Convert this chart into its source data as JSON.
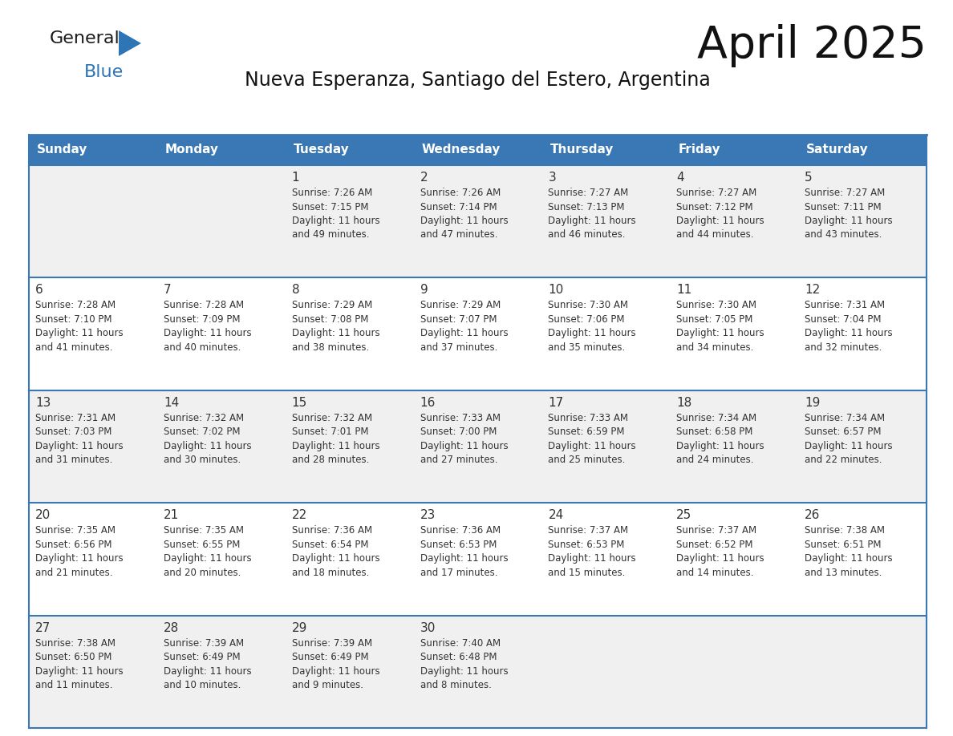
{
  "title": "April 2025",
  "subtitle": "Nueva Esperanza, Santiago del Estero, Argentina",
  "header_bg": "#3a78b5",
  "header_text": "#ffffff",
  "cell_bg_odd": "#f0f0f0",
  "cell_bg_even": "#ffffff",
  "border_color": "#3a78b5",
  "text_color": "#333333",
  "day_num_color": "#333333",
  "logo_black": "#1a1a1a",
  "logo_blue": "#2e75b6",
  "logo_tri": "#2e75b6",
  "day_headers": [
    "Sunday",
    "Monday",
    "Tuesday",
    "Wednesday",
    "Thursday",
    "Friday",
    "Saturday"
  ],
  "weeks": [
    [
      {
        "day": "",
        "text": ""
      },
      {
        "day": "",
        "text": ""
      },
      {
        "day": "1",
        "text": "Sunrise: 7:26 AM\nSunset: 7:15 PM\nDaylight: 11 hours\nand 49 minutes."
      },
      {
        "day": "2",
        "text": "Sunrise: 7:26 AM\nSunset: 7:14 PM\nDaylight: 11 hours\nand 47 minutes."
      },
      {
        "day": "3",
        "text": "Sunrise: 7:27 AM\nSunset: 7:13 PM\nDaylight: 11 hours\nand 46 minutes."
      },
      {
        "day": "4",
        "text": "Sunrise: 7:27 AM\nSunset: 7:12 PM\nDaylight: 11 hours\nand 44 minutes."
      },
      {
        "day": "5",
        "text": "Sunrise: 7:27 AM\nSunset: 7:11 PM\nDaylight: 11 hours\nand 43 minutes."
      }
    ],
    [
      {
        "day": "6",
        "text": "Sunrise: 7:28 AM\nSunset: 7:10 PM\nDaylight: 11 hours\nand 41 minutes."
      },
      {
        "day": "7",
        "text": "Sunrise: 7:28 AM\nSunset: 7:09 PM\nDaylight: 11 hours\nand 40 minutes."
      },
      {
        "day": "8",
        "text": "Sunrise: 7:29 AM\nSunset: 7:08 PM\nDaylight: 11 hours\nand 38 minutes."
      },
      {
        "day": "9",
        "text": "Sunrise: 7:29 AM\nSunset: 7:07 PM\nDaylight: 11 hours\nand 37 minutes."
      },
      {
        "day": "10",
        "text": "Sunrise: 7:30 AM\nSunset: 7:06 PM\nDaylight: 11 hours\nand 35 minutes."
      },
      {
        "day": "11",
        "text": "Sunrise: 7:30 AM\nSunset: 7:05 PM\nDaylight: 11 hours\nand 34 minutes."
      },
      {
        "day": "12",
        "text": "Sunrise: 7:31 AM\nSunset: 7:04 PM\nDaylight: 11 hours\nand 32 minutes."
      }
    ],
    [
      {
        "day": "13",
        "text": "Sunrise: 7:31 AM\nSunset: 7:03 PM\nDaylight: 11 hours\nand 31 minutes."
      },
      {
        "day": "14",
        "text": "Sunrise: 7:32 AM\nSunset: 7:02 PM\nDaylight: 11 hours\nand 30 minutes."
      },
      {
        "day": "15",
        "text": "Sunrise: 7:32 AM\nSunset: 7:01 PM\nDaylight: 11 hours\nand 28 minutes."
      },
      {
        "day": "16",
        "text": "Sunrise: 7:33 AM\nSunset: 7:00 PM\nDaylight: 11 hours\nand 27 minutes."
      },
      {
        "day": "17",
        "text": "Sunrise: 7:33 AM\nSunset: 6:59 PM\nDaylight: 11 hours\nand 25 minutes."
      },
      {
        "day": "18",
        "text": "Sunrise: 7:34 AM\nSunset: 6:58 PM\nDaylight: 11 hours\nand 24 minutes."
      },
      {
        "day": "19",
        "text": "Sunrise: 7:34 AM\nSunset: 6:57 PM\nDaylight: 11 hours\nand 22 minutes."
      }
    ],
    [
      {
        "day": "20",
        "text": "Sunrise: 7:35 AM\nSunset: 6:56 PM\nDaylight: 11 hours\nand 21 minutes."
      },
      {
        "day": "21",
        "text": "Sunrise: 7:35 AM\nSunset: 6:55 PM\nDaylight: 11 hours\nand 20 minutes."
      },
      {
        "day": "22",
        "text": "Sunrise: 7:36 AM\nSunset: 6:54 PM\nDaylight: 11 hours\nand 18 minutes."
      },
      {
        "day": "23",
        "text": "Sunrise: 7:36 AM\nSunset: 6:53 PM\nDaylight: 11 hours\nand 17 minutes."
      },
      {
        "day": "24",
        "text": "Sunrise: 7:37 AM\nSunset: 6:53 PM\nDaylight: 11 hours\nand 15 minutes."
      },
      {
        "day": "25",
        "text": "Sunrise: 7:37 AM\nSunset: 6:52 PM\nDaylight: 11 hours\nand 14 minutes."
      },
      {
        "day": "26",
        "text": "Sunrise: 7:38 AM\nSunset: 6:51 PM\nDaylight: 11 hours\nand 13 minutes."
      }
    ],
    [
      {
        "day": "27",
        "text": "Sunrise: 7:38 AM\nSunset: 6:50 PM\nDaylight: 11 hours\nand 11 minutes."
      },
      {
        "day": "28",
        "text": "Sunrise: 7:39 AM\nSunset: 6:49 PM\nDaylight: 11 hours\nand 10 minutes."
      },
      {
        "day": "29",
        "text": "Sunrise: 7:39 AM\nSunset: 6:49 PM\nDaylight: 11 hours\nand 9 minutes."
      },
      {
        "day": "30",
        "text": "Sunrise: 7:40 AM\nSunset: 6:48 PM\nDaylight: 11 hours\nand 8 minutes."
      },
      {
        "day": "",
        "text": ""
      },
      {
        "day": "",
        "text": ""
      },
      {
        "day": "",
        "text": ""
      }
    ]
  ]
}
